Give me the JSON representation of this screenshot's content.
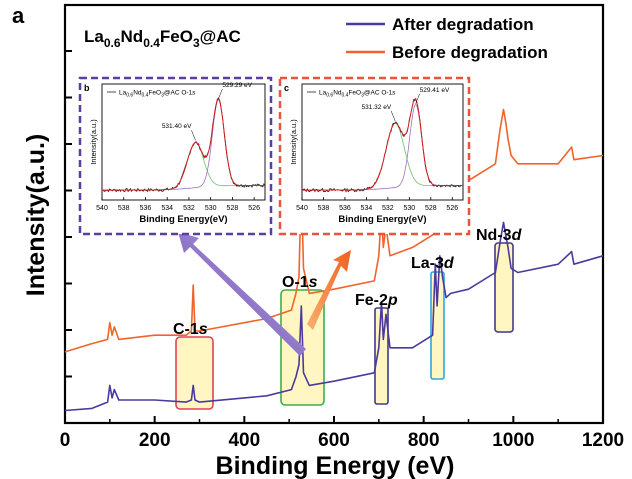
{
  "panel_letter": "a",
  "colors": {
    "after": "#4b3a9e",
    "before": "#f0642a",
    "axis": "#000000",
    "inset_b_frame": "#5a3fa0",
    "inset_c_frame": "#e8553a",
    "highlight_fill": "#fff6c2",
    "c1s_box": "#e0405a",
    "o1s_box": "#38b04a",
    "fe2p_box": "#3f3a8a",
    "la3d_box": "#2fa8d8",
    "nd3d_box": "#3f3a8a",
    "fit_red": "#e02020",
    "fit_green": "#70c070",
    "fit_purple": "#a070c0",
    "fit_raw": "#222222"
  },
  "chart_data": [
    {
      "type": "line",
      "title_parts": {
        "main": "La",
        "s1": "0.6",
        "m2": "Nd",
        "s2": "0.4",
        "m3": "FeO",
        "s3": "3",
        "m4": "@AC"
      },
      "xlabel": "Binding Energy (eV)",
      "ylabel": "Intensity(a.u.)",
      "xlim": [
        0,
        1200
      ],
      "ylim": [
        0,
        100
      ],
      "xticks": [
        "0",
        "200",
        "400",
        "600",
        "800",
        "1000",
        "1200"
      ],
      "legend": {
        "position": "top-right"
      },
      "series": [
        {
          "name": "After degradation",
          "color_key": "after",
          "x": [
            0,
            60,
            95,
            100,
            105,
            110,
            120,
            200,
            270,
            282,
            286,
            290,
            300,
            400,
            450,
            505,
            515,
            522,
            527,
            532,
            545,
            600,
            690,
            700,
            706,
            710,
            716,
            725,
            775,
            820,
            826,
            830,
            836,
            842,
            850,
            860,
            900,
            960,
            970,
            978,
            983,
            988,
            995,
            1010,
            1100,
            1130,
            1135,
            1200
          ],
          "values": [
            3,
            3.5,
            5,
            9,
            6,
            8,
            5.5,
            5.5,
            5,
            5.5,
            9,
            5.5,
            5,
            6,
            6.5,
            8,
            11,
            14,
            28,
            12,
            9,
            10,
            12,
            18,
            29,
            20,
            26,
            18,
            18,
            21,
            38,
            28,
            40,
            35,
            30,
            31,
            32,
            36,
            43,
            48,
            45,
            42,
            37,
            36,
            38,
            41,
            38,
            40
          ]
        },
        {
          "name": "Before degradation",
          "color_key": "before",
          "x": [
            0,
            60,
            95,
            100,
            105,
            110,
            120,
            200,
            270,
            282,
            286,
            290,
            300,
            400,
            450,
            505,
            515,
            522,
            527,
            532,
            545,
            600,
            690,
            700,
            706,
            710,
            716,
            725,
            775,
            820,
            826,
            830,
            836,
            842,
            850,
            860,
            900,
            960,
            970,
            978,
            983,
            988,
            995,
            1010,
            1100,
            1130,
            1135,
            1200
          ],
          "values": [
            17,
            19,
            20,
            24,
            21,
            23,
            20,
            21,
            21,
            22,
            33,
            22,
            22,
            24,
            25,
            27,
            31,
            35,
            58,
            37,
            31,
            32,
            34,
            40,
            51,
            42,
            47,
            40,
            42,
            45,
            62,
            52,
            65,
            60,
            54,
            56,
            58,
            62,
            70,
            75,
            72,
            68,
            64,
            62,
            62,
            66,
            63,
            64
          ]
        }
      ],
      "annotations": [
        "C-1s",
        "O-1s",
        "Fe-2p",
        "La-3d",
        "Nd-3d"
      ]
    },
    {
      "type": "line",
      "panel": "b",
      "legend_label": "La0.6Nd0.4FeO3@AC O-1s",
      "xlabel": "Binding Energy(eV)",
      "ylabel": "Intensity(a.u.)",
      "xlim": [
        540,
        525
      ],
      "xticks": [
        "540",
        "538",
        "536",
        "534",
        "532",
        "530",
        "528",
        "526"
      ],
      "peaks": [
        {
          "label": "531.40 eV",
          "x": 531.4,
          "height": 0.52
        },
        {
          "label": "529.29 eV",
          "x": 529.29,
          "height": 0.95
        }
      ]
    },
    {
      "type": "line",
      "panel": "c",
      "legend_label": "La0.6Nd0.4FeO3@AC O-1s",
      "xlabel": "Binding Energy(eV)",
      "ylabel": "Intensity(a.u.)",
      "xlim": [
        540,
        525
      ],
      "xticks": [
        "540",
        "538",
        "536",
        "534",
        "532",
        "530",
        "528",
        "526"
      ],
      "peaks": [
        {
          "label": "531.32 eV",
          "x": 531.32,
          "height": 0.72
        },
        {
          "label": "529.41 eV",
          "x": 529.41,
          "height": 0.9
        }
      ]
    }
  ],
  "text": {
    "legend_after": "After degradation",
    "legend_before": "Before degradation",
    "c1s": "C-1",
    "o1s": "O-1",
    "fe2p": "Fe-2",
    "la3d": "La-3",
    "nd3d": "Nd-3",
    "s": "s",
    "p": "p",
    "d": "d",
    "panel_b": "b",
    "panel_c": "c",
    "inset_title_b": "La",
    "inset_title_c": "La",
    "inset_suffix": "@AC O-1"
  }
}
